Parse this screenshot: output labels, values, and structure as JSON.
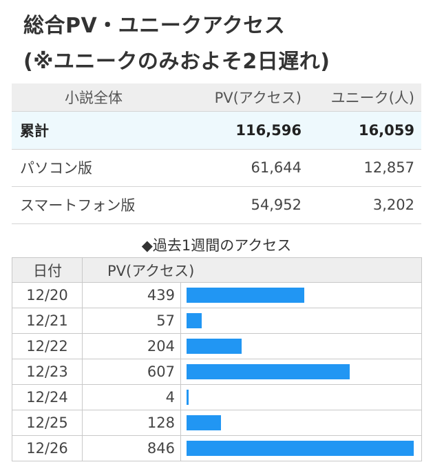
{
  "heading": {
    "line1": "総合PV・ユニークアクセス",
    "line2": "(※ユニークのみおよそ2日遅れ)"
  },
  "summary": {
    "headers": [
      "小説全体",
      "PV(アクセス)",
      "ユニーク(人)"
    ],
    "rows": [
      {
        "label": "累計",
        "pv": "116,596",
        "unique": "16,059"
      },
      {
        "label": "パソコン版",
        "pv": "61,644",
        "unique": "12,857"
      },
      {
        "label": "スマートフォン版",
        "pv": "54,952",
        "unique": "3,202"
      }
    ]
  },
  "weekly": {
    "title": "◆過去1週間のアクセス",
    "headers": {
      "date": "日付",
      "pv": "PV(アクセス)"
    },
    "bar_color": "#2196f3",
    "bar_max": 846,
    "rows": [
      {
        "date": "12/20",
        "pv": 439
      },
      {
        "date": "12/21",
        "pv": 57
      },
      {
        "date": "12/22",
        "pv": 204
      },
      {
        "date": "12/23",
        "pv": 607
      },
      {
        "date": "12/24",
        "pv": 4
      },
      {
        "date": "12/25",
        "pv": 128
      },
      {
        "date": "12/26",
        "pv": 846
      }
    ]
  }
}
